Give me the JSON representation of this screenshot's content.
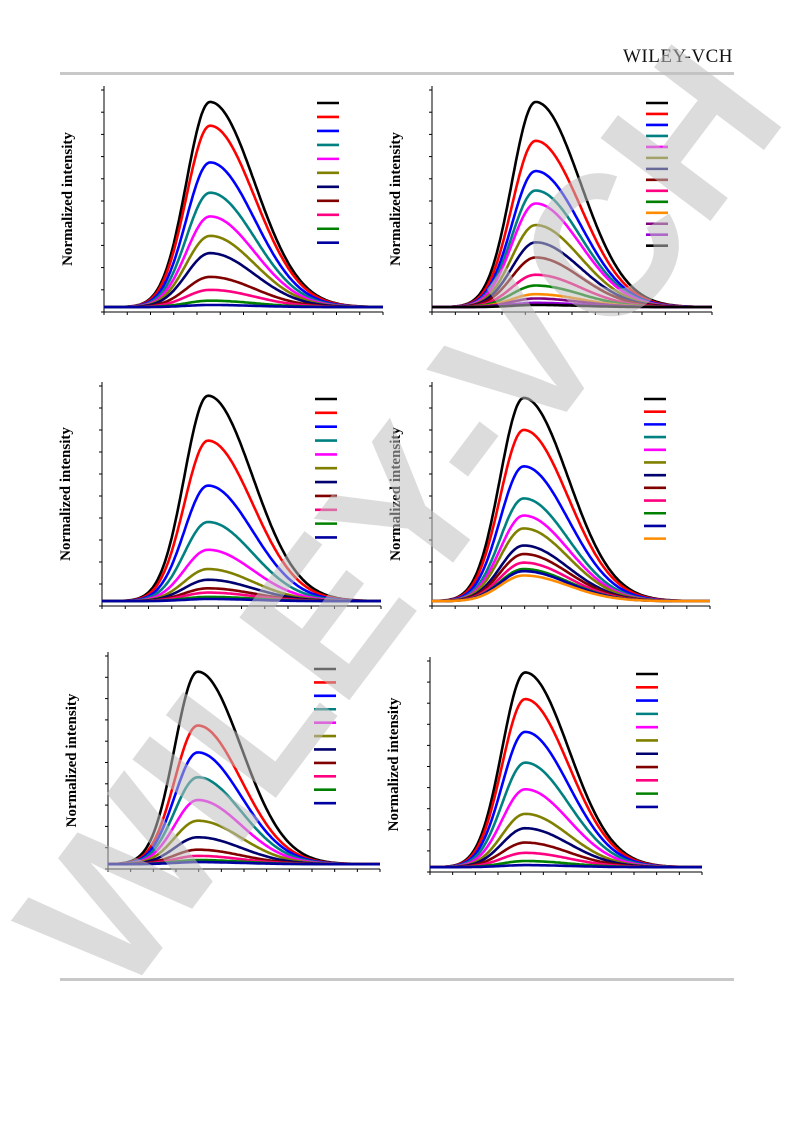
{
  "header": {
    "publisher": "WILEY-VCH"
  },
  "watermark": {
    "text": "WILEY-VCH",
    "color": "#bfbfbf"
  },
  "chart_data": [
    {
      "type": "line",
      "ylabel": "Normalized intensity",
      "xlim": [
        0,
        1
      ],
      "ylim": [
        0,
        1
      ],
      "peak_x": 0.38,
      "grid": false,
      "legend_position": "top-right",
      "legend_labels_visible": false,
      "series": [
        {
          "color": "#000000",
          "peak": 0.95
        },
        {
          "color": "#ff0000",
          "peak": 0.84
        },
        {
          "color": "#0000ff",
          "peak": 0.67
        },
        {
          "color": "#008080",
          "peak": 0.53
        },
        {
          "color": "#ff00ff",
          "peak": 0.42
        },
        {
          "color": "#808000",
          "peak": 0.33
        },
        {
          "color": "#00006e",
          "peak": 0.25
        },
        {
          "color": "#800000",
          "peak": 0.14
        },
        {
          "color": "#ff0080",
          "peak": 0.08
        },
        {
          "color": "#008000",
          "peak": 0.03
        },
        {
          "color": "#0000a0",
          "peak": 0.01
        }
      ]
    },
    {
      "type": "line",
      "ylabel": "Normalized intensity",
      "xlim": [
        0,
        1
      ],
      "ylim": [
        0,
        1
      ],
      "peak_x": 0.37,
      "grid": false,
      "legend_position": "top-right",
      "legend_labels_visible": false,
      "series": [
        {
          "color": "#000000",
          "peak": 0.95
        },
        {
          "color": "#ff0000",
          "peak": 0.77
        },
        {
          "color": "#0000ff",
          "peak": 0.63
        },
        {
          "color": "#008080",
          "peak": 0.54
        },
        {
          "color": "#ff00ff",
          "peak": 0.48
        },
        {
          "color": "#808000",
          "peak": 0.38
        },
        {
          "color": "#00006e",
          "peak": 0.3
        },
        {
          "color": "#800000",
          "peak": 0.23
        },
        {
          "color": "#ff0080",
          "peak": 0.15
        },
        {
          "color": "#008000",
          "peak": 0.1
        },
        {
          "color": "#ff8c00",
          "peak": 0.06
        },
        {
          "color": "#800080",
          "peak": 0.04
        },
        {
          "color": "#9400d3",
          "peak": 0.02
        },
        {
          "color": "#000000",
          "peak": 0.01
        }
      ]
    },
    {
      "type": "line",
      "ylabel": "Normalized intensity",
      "xlim": [
        0,
        1
      ],
      "ylim": [
        0,
        1
      ],
      "peak_x": 0.38,
      "grid": false,
      "legend_position": "top-right",
      "legend_labels_visible": false,
      "series": [
        {
          "color": "#000000",
          "peak": 0.96
        },
        {
          "color": "#ff0000",
          "peak": 0.75
        },
        {
          "color": "#0000ff",
          "peak": 0.54
        },
        {
          "color": "#008080",
          "peak": 0.37
        },
        {
          "color": "#ff00ff",
          "peak": 0.24
        },
        {
          "color": "#808000",
          "peak": 0.15
        },
        {
          "color": "#00006e",
          "peak": 0.1
        },
        {
          "color": "#800000",
          "peak": 0.06
        },
        {
          "color": "#ff0080",
          "peak": 0.04
        },
        {
          "color": "#008000",
          "peak": 0.02
        },
        {
          "color": "#0000a0",
          "peak": 0.01
        }
      ]
    },
    {
      "type": "line",
      "ylabel": "Normalized intensity",
      "xlim": [
        0,
        1
      ],
      "ylim": [
        0,
        1
      ],
      "peak_x": 0.33,
      "grid": false,
      "legend_position": "top-right",
      "legend_labels_visible": false,
      "series": [
        {
          "color": "#000000",
          "peak": 0.95
        },
        {
          "color": "#ff0000",
          "peak": 0.8
        },
        {
          "color": "#0000ff",
          "peak": 0.63
        },
        {
          "color": "#008080",
          "peak": 0.48
        },
        {
          "color": "#ff00ff",
          "peak": 0.4
        },
        {
          "color": "#808000",
          "peak": 0.34
        },
        {
          "color": "#00006e",
          "peak": 0.26
        },
        {
          "color": "#800000",
          "peak": 0.22
        },
        {
          "color": "#ff0080",
          "peak": 0.18
        },
        {
          "color": "#008000",
          "peak": 0.15
        },
        {
          "color": "#0000a0",
          "peak": 0.14
        },
        {
          "color": "#ff8c00",
          "peak": 0.12
        }
      ]
    },
    {
      "type": "line",
      "ylabel": "Normalized intensity",
      "xlim": [
        0,
        1
      ],
      "ylim": [
        0,
        1
      ],
      "peak_x": 0.33,
      "grid": false,
      "legend_position": "top-right",
      "legend_labels_visible": false,
      "series": [
        {
          "color": "#000000",
          "peak": 0.93
        },
        {
          "color": "#ff0000",
          "peak": 0.67
        },
        {
          "color": "#0000ff",
          "peak": 0.54
        },
        {
          "color": "#008080",
          "peak": 0.42
        },
        {
          "color": "#ff00ff",
          "peak": 0.31
        },
        {
          "color": "#808000",
          "peak": 0.21
        },
        {
          "color": "#00006e",
          "peak": 0.13
        },
        {
          "color": "#800000",
          "peak": 0.07
        },
        {
          "color": "#ff0080",
          "peak": 0.04
        },
        {
          "color": "#008000",
          "peak": 0.02
        },
        {
          "color": "#0000a0",
          "peak": 0.01
        }
      ]
    },
    {
      "type": "line",
      "ylabel": "Normalized intensity",
      "xlim": [
        0,
        1
      ],
      "ylim": [
        0,
        1
      ],
      "peak_x": 0.35,
      "grid": false,
      "legend_position": "top-right",
      "legend_labels_visible": false,
      "series": [
        {
          "color": "#000000",
          "peak": 0.95
        },
        {
          "color": "#ff0000",
          "peak": 0.82
        },
        {
          "color": "#0000ff",
          "peak": 0.66
        },
        {
          "color": "#008080",
          "peak": 0.51
        },
        {
          "color": "#ff00ff",
          "peak": 0.38
        },
        {
          "color": "#808000",
          "peak": 0.26
        },
        {
          "color": "#00006e",
          "peak": 0.19
        },
        {
          "color": "#800000",
          "peak": 0.12
        },
        {
          "color": "#ff0080",
          "peak": 0.07
        },
        {
          "color": "#008000",
          "peak": 0.03
        },
        {
          "color": "#0000a0",
          "peak": 0.01
        }
      ]
    }
  ]
}
